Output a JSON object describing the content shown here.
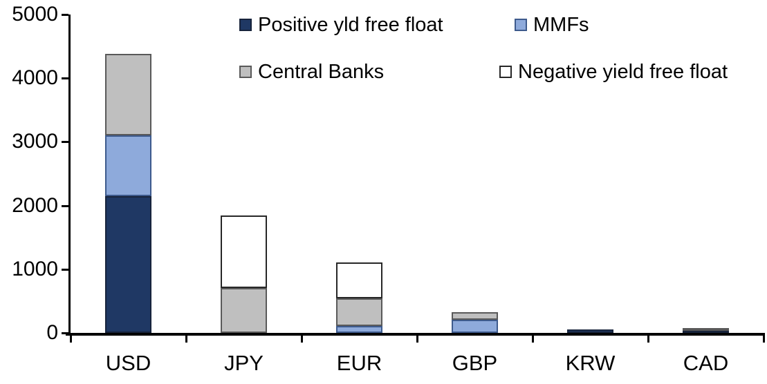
{
  "chart_data": {
    "type": "bar",
    "stacked": true,
    "title": "",
    "xlabel": "",
    "ylabel": "",
    "categories": [
      "USD",
      "JPY",
      "EUR",
      "GBP",
      "KRW",
      "CAD"
    ],
    "series": [
      {
        "name": "Positive yld free float",
        "color": "#1F3864",
        "border_color": "#17233B",
        "values": [
          2150,
          0,
          0,
          0,
          50,
          45
        ]
      },
      {
        "name": "MMFs",
        "color": "#8EAADB",
        "border_color": "#3D5A8C",
        "values": [
          950,
          0,
          110,
          210,
          0,
          0
        ]
      },
      {
        "name": "Central Banks",
        "color": "#BFBFBF",
        "border_color": "#595959",
        "values": [
          1280,
          700,
          430,
          120,
          0,
          30
        ]
      },
      {
        "name": "Negative yield free float",
        "color": "#FFFFFF",
        "border_color": "#262626",
        "values": [
          0,
          1140,
          570,
          0,
          0,
          0
        ]
      }
    ],
    "totals": [
      4380,
      1840,
      1110,
      330,
      50,
      75
    ],
    "ylim": [
      0,
      5000
    ],
    "ytick_step": 1000,
    "ytick_labels": [
      "0",
      "1000",
      "2000",
      "3000",
      "4000",
      "5000"
    ],
    "grid": false,
    "legend_position": "top",
    "axis_color": "#000000",
    "background_color": "#FFFFFF"
  }
}
